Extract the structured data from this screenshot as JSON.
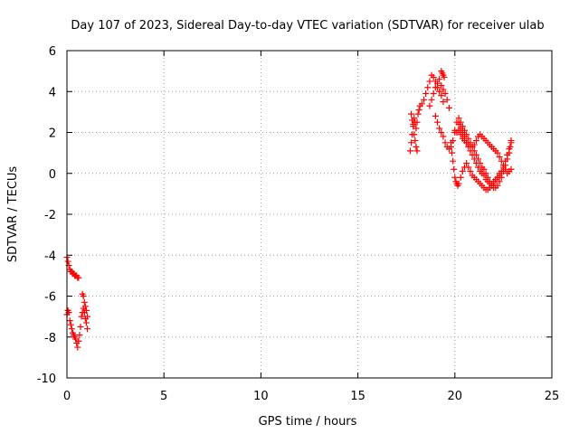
{
  "chart_data": {
    "type": "scatter",
    "title": "Day 107 of 2023, Sidereal Day-to-day VTEC variation (SDTVAR) for receiver ulab",
    "xlabel": "GPS time / hours",
    "ylabel": "SDTVAR / TECUs",
    "xlim": [
      0,
      25
    ],
    "ylim": [
      -10,
      6
    ],
    "xticks": [
      0,
      5,
      10,
      15,
      20,
      25
    ],
    "yticks": [
      -10,
      -8,
      -6,
      -4,
      -2,
      0,
      2,
      4,
      6
    ],
    "grid": true,
    "marker": "+",
    "color": "#ff0000",
    "series": [
      {
        "name": "SDTVAR",
        "x": [
          0.0,
          0.05,
          0.1,
          0.15,
          0.2,
          0.25,
          0.3,
          0.35,
          0.4,
          0.45,
          0.5,
          0.55,
          0.6,
          0.0,
          0.05,
          0.1,
          0.15,
          0.2,
          0.25,
          0.3,
          0.35,
          0.4,
          0.45,
          0.5,
          0.55,
          0.6,
          0.65,
          0.7,
          0.75,
          0.8,
          0.85,
          0.9,
          0.95,
          1.0,
          1.05,
          0.8,
          0.85,
          0.9,
          0.95,
          1.0,
          1.05,
          17.7,
          17.75,
          17.8,
          17.85,
          17.9,
          17.95,
          18.0,
          18.05,
          18.1,
          18.15,
          18.2,
          18.3,
          18.4,
          18.5,
          18.6,
          18.7,
          18.8,
          18.9,
          19.0,
          19.1,
          19.2,
          19.3,
          19.4,
          17.75,
          17.8,
          17.85,
          17.9,
          17.95,
          18.0,
          18.05,
          19.0,
          19.1,
          19.2,
          19.3,
          19.4,
          19.5,
          19.6,
          19.7,
          19.8,
          19.9,
          20.0,
          20.1,
          20.2,
          20.3,
          20.4,
          20.5,
          20.6,
          20.7,
          20.8,
          20.9,
          21.0,
          21.1,
          21.2,
          21.3,
          21.4,
          21.5,
          21.6,
          21.7,
          21.8,
          21.9,
          22.0,
          22.1,
          22.2,
          22.3,
          22.4,
          22.5,
          22.6,
          22.7,
          22.8,
          22.85,
          22.9,
          19.8,
          19.85,
          19.9,
          19.95,
          20.0,
          20.05,
          20.1,
          20.15,
          20.2,
          20.3,
          20.4,
          20.5,
          20.6,
          20.7,
          20.8,
          20.9,
          21.0,
          21.1,
          21.2,
          21.3,
          21.4,
          21.5,
          21.6,
          21.7,
          21.8,
          21.9,
          22.0,
          22.1,
          22.2,
          22.3,
          20.2,
          20.3,
          20.4,
          20.5,
          20.6,
          20.7,
          20.8,
          20.9,
          21.0,
          21.1,
          21.2,
          21.3,
          21.4,
          21.5,
          21.6,
          21.7,
          21.8,
          21.9,
          22.0,
          22.1,
          22.2,
          22.3,
          22.4,
          22.5,
          22.6,
          22.7,
          22.8,
          22.9,
          20.0,
          20.1,
          20.2,
          20.3,
          20.4,
          20.5,
          20.6,
          20.7,
          20.8,
          20.9,
          21.0,
          21.1,
          21.2,
          21.3,
          21.4,
          21.5,
          21.6,
          21.7,
          21.8,
          21.9,
          22.0,
          22.1,
          22.2,
          22.3,
          22.4,
          22.5,
          22.6,
          22.7,
          22.8,
          22.9,
          18.7,
          18.8,
          18.9,
          19.0,
          19.1,
          19.2,
          19.3,
          19.4,
          19.5,
          19.6,
          19.7,
          19.3,
          19.35,
          19.4,
          19.45
        ],
        "y": [
          -4.1,
          -4.3,
          -4.5,
          -4.7,
          -4.8,
          -4.8,
          -4.9,
          -4.9,
          -5.0,
          -5.0,
          -5.0,
          -5.1,
          -5.1,
          -6.9,
          -6.7,
          -6.8,
          -7.2,
          -7.4,
          -7.6,
          -7.8,
          -7.9,
          -8.0,
          -8.1,
          -8.3,
          -8.5,
          -8.2,
          -7.9,
          -7.5,
          -7.0,
          -6.8,
          -6.6,
          -6.8,
          -7.1,
          -7.3,
          -7.6,
          -5.9,
          -6.0,
          -6.3,
          -6.5,
          -6.7,
          -7.0,
          1.1,
          1.5,
          1.9,
          2.4,
          2.7,
          2.5,
          2.2,
          2.5,
          2.9,
          3.1,
          3.3,
          3.4,
          3.6,
          3.9,
          4.2,
          4.5,
          4.8,
          4.7,
          4.5,
          4.2,
          4.0,
          3.8,
          3.5,
          2.9,
          2.6,
          2.3,
          1.9,
          1.6,
          1.3,
          1.1,
          2.8,
          2.5,
          2.2,
          2.0,
          1.8,
          1.5,
          1.3,
          1.2,
          1.3,
          1.6,
          2.1,
          2.5,
          2.4,
          2.2,
          2.0,
          1.8,
          1.5,
          1.3,
          1.1,
          0.9,
          0.7,
          0.5,
          0.3,
          0.1,
          0.0,
          -0.1,
          -0.3,
          -0.4,
          -0.5,
          -0.6,
          -0.7,
          -0.7,
          -0.6,
          -0.4,
          -0.2,
          0.1,
          0.4,
          0.7,
          1.0,
          1.3,
          1.6,
          1.5,
          1.0,
          0.6,
          0.2,
          -0.2,
          -0.4,
          -0.5,
          -0.6,
          -0.5,
          -0.2,
          0.1,
          0.3,
          0.5,
          0.3,
          0.1,
          -0.1,
          -0.2,
          -0.3,
          -0.4,
          -0.5,
          -0.6,
          -0.7,
          -0.8,
          -0.8,
          -0.7,
          -0.6,
          -0.5,
          -0.3,
          -0.2,
          0.0,
          2.7,
          2.5,
          2.3,
          2.1,
          1.9,
          1.7,
          1.5,
          1.3,
          1.1,
          0.9,
          0.7,
          0.5,
          0.3,
          0.2,
          0.0,
          -0.2,
          -0.4,
          -0.5,
          -0.4,
          -0.3,
          -0.2,
          -0.1,
          0.1,
          0.3,
          0.6,
          0.9,
          1.2,
          1.5,
          2.0,
          2.0,
          2.1,
          1.9,
          1.7,
          1.6,
          1.5,
          1.4,
          1.3,
          1.3,
          1.4,
          1.6,
          1.8,
          1.9,
          1.8,
          1.7,
          1.6,
          1.5,
          1.4,
          1.3,
          1.2,
          1.1,
          1.0,
          0.8,
          0.6,
          0.4,
          0.2,
          0.0,
          0.1,
          0.2,
          3.3,
          3.6,
          3.9,
          4.2,
          4.4,
          4.6,
          4.3,
          4.1,
          3.9,
          3.6,
          3.2,
          5.0,
          4.9,
          4.8,
          4.7
        ]
      }
    ]
  }
}
